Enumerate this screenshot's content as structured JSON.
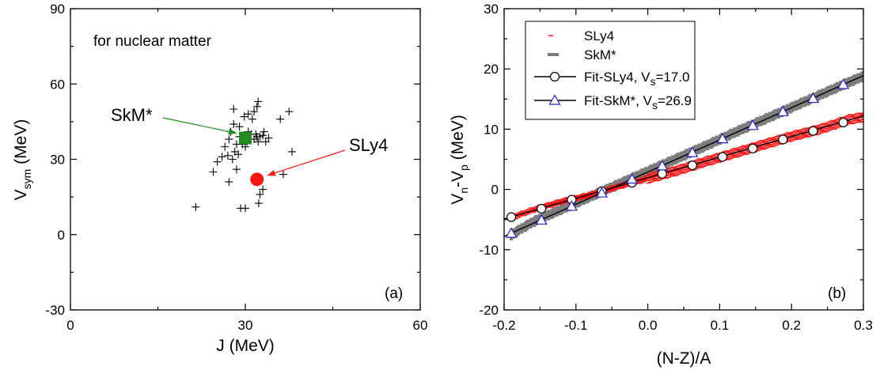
{
  "chart_data": [
    {
      "type": "scatter",
      "panel_label": "(a)",
      "annotation": "for nuclear matter",
      "xlabel": "J (MeV)",
      "ylabel_main": "V",
      "ylabel_sub": "sym",
      "ylabel_unit": " (MeV)",
      "xlim": [
        0,
        60
      ],
      "ylim": [
        -30,
        90
      ],
      "x_ticks": [
        "0",
        "30",
        "60"
      ],
      "y_ticks": [
        "-30",
        "0",
        "30",
        "60",
        "90"
      ],
      "grid": false,
      "series": [
        {
          "marker": "plus",
          "points": [
            [
              21.5,
              11
            ],
            [
              24.5,
              25
            ],
            [
              25.2,
              29
            ],
            [
              26,
              31
            ],
            [
              26.5,
              35
            ],
            [
              27,
              31.5
            ],
            [
              27.2,
              38
            ],
            [
              27.5,
              41
            ],
            [
              27.8,
              30
            ],
            [
              28,
              44
            ],
            [
              28,
              50
            ],
            [
              28.2,
              33
            ],
            [
              28.5,
              36
            ],
            [
              28.5,
              26
            ],
            [
              28.8,
              32
            ],
            [
              29,
              39
            ],
            [
              29,
              43
            ],
            [
              29.2,
              10.5
            ],
            [
              29.5,
              36
            ],
            [
              29.6,
              39.5
            ],
            [
              29.8,
              47
            ],
            [
              30,
              35
            ],
            [
              30,
              10.5
            ],
            [
              30.3,
              37
            ],
            [
              30.5,
              41
            ],
            [
              30.5,
              48
            ],
            [
              31,
              40
            ],
            [
              31.2,
              46
            ],
            [
              31.5,
              38
            ],
            [
              31.5,
              49
            ],
            [
              31.8,
              40
            ],
            [
              32,
              39
            ],
            [
              32,
              51
            ],
            [
              32.2,
              53
            ],
            [
              32.2,
              37
            ],
            [
              32.3,
              12.5
            ],
            [
              32.5,
              16
            ],
            [
              32.5,
              39
            ],
            [
              33,
              39.5
            ],
            [
              33,
              18
            ],
            [
              33.2,
              41
            ],
            [
              33.5,
              37
            ],
            [
              34,
              38.5
            ],
            [
              36,
              46
            ],
            [
              36.5,
              24
            ],
            [
              37.5,
              49
            ],
            [
              38,
              33
            ],
            [
              27.2,
              21
            ]
          ]
        },
        {
          "name": "SkM*",
          "color": "#238c23",
          "marker": "square",
          "points": [
            [
              30.0,
              38.5
            ]
          ]
        },
        {
          "name": "SLy4",
          "color": "#ff1414",
          "marker": "circle",
          "points": [
            [
              32.0,
              22.0
            ]
          ]
        }
      ],
      "callouts": [
        {
          "label": "SkM*",
          "color": "#238c23"
        },
        {
          "label": "SLy4",
          "color": "#ff1414"
        }
      ]
    },
    {
      "type": "scatter",
      "panel_label": "(b)",
      "xlabel": "(N-Z)/A",
      "ylabel_parts": [
        "V",
        "n",
        "-V",
        "p",
        " (MeV)"
      ],
      "xlim": [
        -0.2,
        0.3
      ],
      "ylim": [
        -20,
        30
      ],
      "x_ticks": [
        "-0.2",
        "-0.1",
        "0.0",
        "0.1",
        "0.2",
        "0.3"
      ],
      "y_ticks": [
        "-20",
        "-10",
        "0",
        "10",
        "20",
        "30"
      ],
      "grid": false,
      "legend_position": "top-left",
      "series": [
        {
          "name": "SLy4",
          "color": "#ff1414",
          "marker": "dash",
          "points": [
            [
              -0.19,
              -4.7
            ],
            [
              -0.16,
              -3.4
            ],
            [
              -0.12,
              -2.0
            ],
            [
              -0.08,
              -0.9
            ],
            [
              -0.04,
              0.5
            ],
            [
              0.0,
              1.8
            ],
            [
              0.04,
              3.1
            ],
            [
              0.08,
              4.6
            ],
            [
              0.12,
              6.0
            ],
            [
              0.16,
              7.4
            ],
            [
              0.2,
              8.8
            ],
            [
              0.24,
              10.0
            ],
            [
              0.28,
              11.6
            ],
            [
              0.3,
              12.0
            ]
          ]
        },
        {
          "name": "SkM*",
          "color": "#7d7d7d",
          "marker": "square",
          "points": [
            [
              -0.19,
              -7.5
            ],
            [
              -0.16,
              -5.4
            ],
            [
              -0.12,
              -3.3
            ],
            [
              -0.08,
              -1.2
            ],
            [
              -0.04,
              0.9
            ],
            [
              0.0,
              3.0
            ],
            [
              0.04,
              5.1
            ],
            [
              0.08,
              7.2
            ],
            [
              0.12,
              9.4
            ],
            [
              0.16,
              11.5
            ],
            [
              0.2,
              13.6
            ],
            [
              0.24,
              15.7
            ],
            [
              0.28,
              17.8
            ],
            [
              0.3,
              18.8
            ]
          ]
        },
        {
          "name_parts": [
            "Fit-SLy4, V",
            "s",
            "=17.0"
          ],
          "color": "#000000",
          "marker": "circle-open",
          "line": [
            [
              -0.2,
              -4.9
            ],
            [
              0.3,
              12.2
            ]
          ],
          "points": [
            [
              -0.19,
              -4.6
            ],
            [
              -0.148,
              -3.2
            ],
            [
              -0.106,
              -1.7
            ],
            [
              -0.064,
              -0.3
            ],
            [
              -0.022,
              1.1
            ],
            [
              0.02,
              2.6
            ],
            [
              0.062,
              4.0
            ],
            [
              0.104,
              5.4
            ],
            [
              0.146,
              6.8
            ],
            [
              0.188,
              8.3
            ],
            [
              0.23,
              9.7
            ],
            [
              0.272,
              11.1
            ]
          ]
        },
        {
          "name_parts": [
            "Fit-SkM*, V",
            "s",
            "=26.9"
          ],
          "color": "#2323c8",
          "line_color": "#000000",
          "marker": "triangle-open",
          "line": [
            [
              -0.2,
              -7.8
            ],
            [
              0.3,
              18.9
            ]
          ],
          "points": [
            [
              -0.19,
              -7.3
            ],
            [
              -0.148,
              -5.1
            ],
            [
              -0.106,
              -2.8
            ],
            [
              -0.064,
              -0.6
            ],
            [
              -0.022,
              1.7
            ],
            [
              0.02,
              3.9
            ],
            [
              0.062,
              6.1
            ],
            [
              0.104,
              8.4
            ],
            [
              0.146,
              10.6
            ],
            [
              0.188,
              12.9
            ],
            [
              0.23,
              15.1
            ],
            [
              0.272,
              17.4
            ]
          ]
        }
      ]
    }
  ]
}
